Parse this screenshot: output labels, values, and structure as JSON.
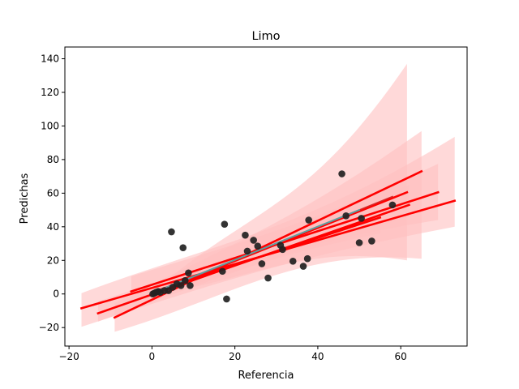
{
  "chart_data": {
    "type": "scatter",
    "title": "Limo",
    "xlabel": "Referencia",
    "ylabel": "Predichas",
    "xlim": [
      -21,
      76
    ],
    "ylim": [
      -31,
      147
    ],
    "xticks": [
      -20,
      0,
      20,
      40,
      60
    ],
    "yticks": [
      -20,
      0,
      20,
      40,
      60,
      80,
      100,
      120,
      140
    ],
    "grid": false,
    "legend": "none",
    "points": [
      [
        0.2,
        0.0
      ],
      [
        0.6,
        0.5
      ],
      [
        1.0,
        1.0
      ],
      [
        1.5,
        1.5
      ],
      [
        2.0,
        1.0
      ],
      [
        3.0,
        2.0
      ],
      [
        4.0,
        2.0
      ],
      [
        5.0,
        4.0
      ],
      [
        6.0,
        6.0
      ],
      [
        7.0,
        5.0
      ],
      [
        8.0,
        8.0
      ],
      [
        8.8,
        12.5
      ],
      [
        9.2,
        5.0
      ],
      [
        4.7,
        37.0
      ],
      [
        7.5,
        27.5
      ],
      [
        17.0,
        13.5
      ],
      [
        17.5,
        41.5
      ],
      [
        18.0,
        -3.0
      ],
      [
        22.5,
        35.0
      ],
      [
        23.0,
        25.5
      ],
      [
        24.5,
        32.0
      ],
      [
        25.5,
        28.5
      ],
      [
        26.5,
        18.0
      ],
      [
        28.0,
        9.5
      ],
      [
        31.0,
        29.0
      ],
      [
        31.5,
        26.5
      ],
      [
        34.0,
        19.5
      ],
      [
        36.5,
        16.5
      ],
      [
        37.5,
        21.0
      ],
      [
        37.8,
        44.0
      ],
      [
        45.8,
        71.5
      ],
      [
        46.8,
        46.5
      ],
      [
        50.0,
        30.5
      ],
      [
        50.5,
        45.0
      ],
      [
        53.0,
        31.5
      ],
      [
        58.0,
        53.0
      ]
    ],
    "fits": [
      {
        "x": [
          0,
          61.5
        ],
        "y": [
          0.0,
          60.5
        ],
        "band": [
          [
            -0.5,
            0.5
          ],
          [
            20.0,
            137.0
          ]
        ],
        "color": "#ff0000"
      },
      {
        "x": [
          -9,
          65
        ],
        "y": [
          -14.0,
          73.0
        ],
        "band": [
          [
            -22.5,
            -5.5
          ],
          [
            21.0,
            97.0
          ]
        ],
        "color": "#ff0000"
      },
      {
        "x": [
          -17,
          73
        ],
        "y": [
          -8.5,
          55.5
        ],
        "band": [
          [
            -19.5,
            0.5
          ],
          [
            40.0,
            93.5
          ]
        ],
        "color": "#ff0000"
      },
      {
        "x": [
          -5,
          69
        ],
        "y": [
          1.5,
          60.5
        ],
        "band": [
          [
            -3.0,
            10.5
          ],
          [
            44.0,
            77.5
          ]
        ],
        "color": "#ff0000"
      },
      {
        "x": [
          -13,
          62
        ],
        "y": [
          -11.5,
          53.0
        ],
        "band": [
          [
            -16.5,
            -4.5
          ],
          [
            46.0,
            65.0
          ]
        ],
        "color": "#ff0000"
      },
      {
        "x": [
          0,
          55
        ],
        "y": [
          1.0,
          45.5
        ],
        "band": [
          [
            -2.0,
            4.0
          ],
          [
            36.0,
            60.0
          ]
        ],
        "color": "#ff0000"
      },
      {
        "x": [
          0,
          58
        ],
        "y": [
          0.0,
          58.0
        ],
        "band": [
          [
            -1.0,
            1.0
          ],
          [
            52.0,
            64.0
          ]
        ],
        "color": "#d62728"
      },
      {
        "x": [
          0,
          50
        ],
        "y": [
          0.5,
          50.0
        ],
        "band": null,
        "color": "#5f9ea0"
      }
    ],
    "colors": {
      "points": "#222222",
      "fit": "#ff0000",
      "band": "#ffc0c0",
      "identity": "#5f9ea0"
    }
  }
}
